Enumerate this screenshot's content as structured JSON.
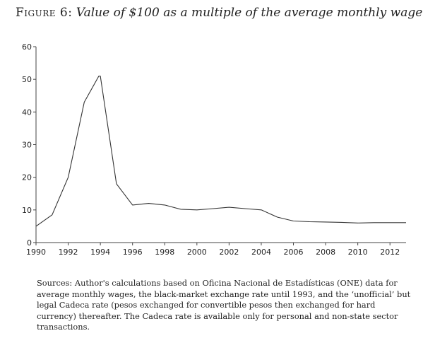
{
  "figure": {
    "label": "Figure 6:",
    "title": "Value of $100 as a multiple of the average monthly wage"
  },
  "sources": "Sources: Author's calculations based on Oficina Nacional de Estadísticas (ONE) data for average monthly wages, the black-market exchange rate until 1993, and the ‘unofficial’ but legal Cadeca rate (pesos exchanged for convertible pesos then exchanged for hard currency) thereafter. The Cadeca rate is available only for personal and non-state sector transactions.",
  "chart_data": {
    "type": "line",
    "title": "Value of $100 as a multiple of the average monthly wage",
    "xlabel": "",
    "ylabel": "",
    "xlim": [
      1990,
      2013
    ],
    "ylim": [
      0,
      60
    ],
    "x_ticks": [
      1990,
      1992,
      1994,
      1996,
      1998,
      2000,
      2002,
      2004,
      2006,
      2008,
      2010,
      2012
    ],
    "y_ticks": [
      0,
      10,
      20,
      30,
      40,
      50,
      60
    ],
    "grid": false,
    "legend": "none",
    "line_color": "#333333",
    "series": [
      {
        "x": [
          1990,
          1991,
          1992,
          1993,
          1993.9,
          1994,
          1995,
          1996,
          1997,
          1998,
          1999,
          2000,
          2001,
          2002,
          2003,
          2004,
          2005,
          2006,
          2007,
          2008,
          2009,
          2010,
          2011,
          2012,
          2013
        ],
        "y": [
          5,
          8.5,
          20,
          43,
          51,
          51,
          18,
          11.5,
          12,
          11.5,
          10.2,
          10,
          10.4,
          10.8,
          10.4,
          10,
          7.8,
          6.6,
          6.4,
          6.3,
          6.2,
          6.0,
          6.1,
          6.1,
          6.1
        ]
      }
    ]
  }
}
